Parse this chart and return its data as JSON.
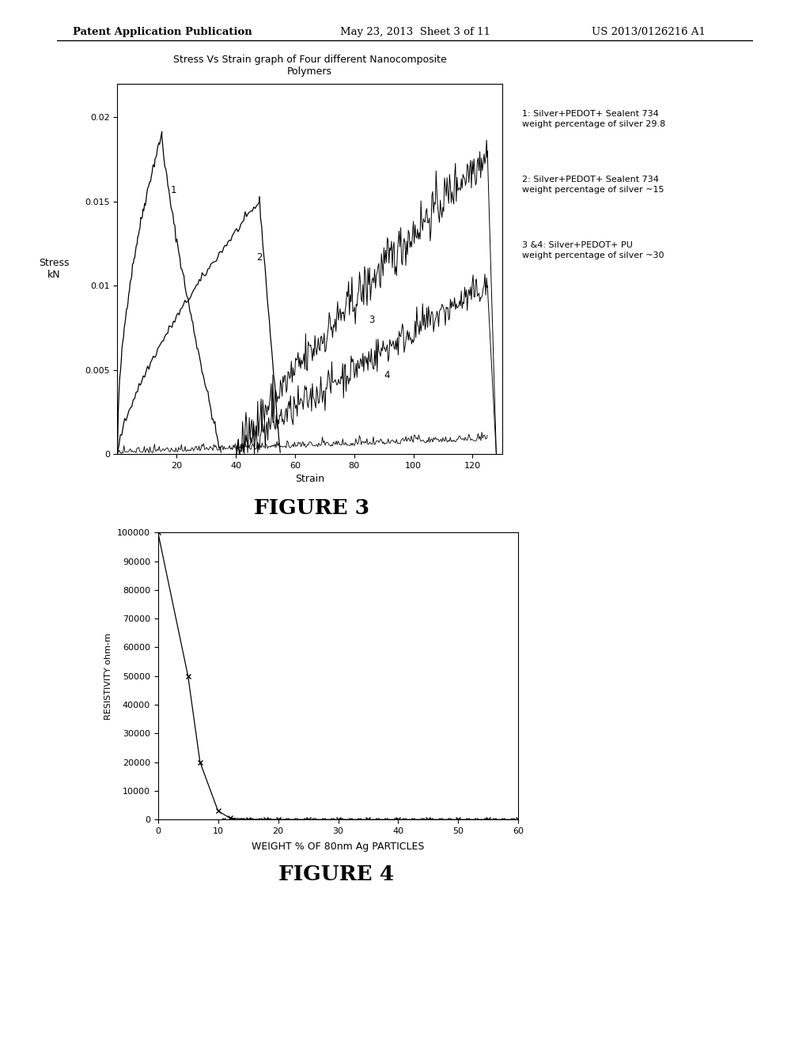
{
  "background_color": "#ffffff",
  "header_left": "Patent Application Publication",
  "header_mid": "May 23, 2013  Sheet 3 of 11",
  "header_right": "US 2013/0126216 A1",
  "fig3_title": "Stress Vs Strain graph of Four different Nanocomposite\nPolymers",
  "fig3_xlabel": "Strain",
  "fig3_ylabel": "Stress\nkN",
  "fig3_xlim": [
    0,
    130
  ],
  "fig3_ylim": [
    0,
    0.022
  ],
  "fig3_xticks": [
    20,
    40,
    60,
    80,
    100,
    120
  ],
  "fig3_yticks": [
    0,
    0.005,
    0.01,
    0.015,
    0.02
  ],
  "fig3_label": "FIGURE 3",
  "fig3_legend1": "1: Silver+PEDOT+ Sealent 734\nweight percentage of silver 29.8",
  "fig3_legend2": "2: Silver+PEDOT+ Sealent 734\nweight percentage of silver ~15",
  "fig3_legend3": "3 &4: Silver+PEDOT+ PU\nweight percentage of silver ~30",
  "fig4_xlabel": "WEIGHT % OF 80nm Ag PARTICLES",
  "fig4_ylabel": "RESISTIVITY ohm-m",
  "fig4_xlim": [
    0,
    60
  ],
  "fig4_ylim": [
    0,
    100000
  ],
  "fig4_xticks": [
    0,
    10,
    20,
    30,
    40,
    50,
    60
  ],
  "fig4_yticks": [
    0,
    10000,
    20000,
    30000,
    40000,
    50000,
    60000,
    70000,
    80000,
    90000,
    100000
  ],
  "fig4_label": "FIGURE 4"
}
